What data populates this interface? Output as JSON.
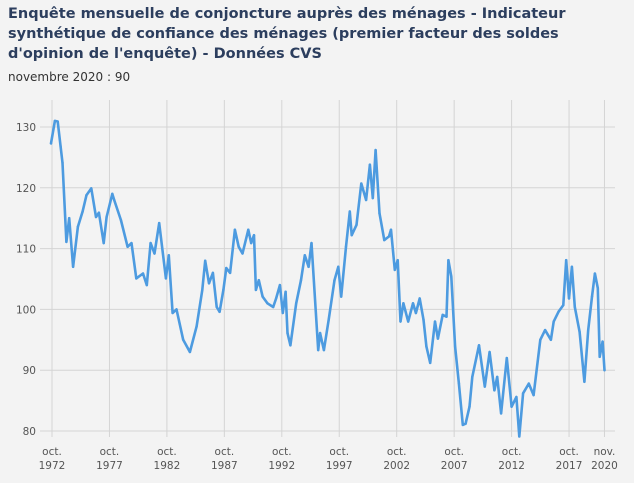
{
  "title": "Enquête mensuelle de conjoncture auprès des ménages - Indicateur synthétique de confiance des ménages (premier facteur des soldes d'opinion de l'enquête) - Données CVS",
  "subtitle": "novembre 2020 : 90",
  "chart_data": {
    "type": "line",
    "title": "Enquête mensuelle de conjoncture auprès des ménages - Indicateur synthétique de confiance des ménages (premier facteur des soldes d'opinion de l'enquête) - Données CVS",
    "xlabel": "",
    "ylabel": "",
    "ylim": [
      80,
      130
    ],
    "grid": true,
    "line_color": "#4d9be0",
    "y_ticks": [
      80,
      90,
      100,
      110,
      120,
      130
    ],
    "x_ticks": [
      {
        "date": "1972-10",
        "label": [
          "oct.",
          "1972"
        ]
      },
      {
        "date": "1977-10",
        "label": [
          "oct.",
          "1977"
        ]
      },
      {
        "date": "1982-10",
        "label": [
          "oct.",
          "1982"
        ]
      },
      {
        "date": "1987-10",
        "label": [
          "oct.",
          "1987"
        ]
      },
      {
        "date": "1992-10",
        "label": [
          "oct.",
          "1992"
        ]
      },
      {
        "date": "1997-10",
        "label": [
          "oct.",
          "1997"
        ]
      },
      {
        "date": "2002-10",
        "label": [
          "oct.",
          "2002"
        ]
      },
      {
        "date": "2007-10",
        "label": [
          "oct.",
          "2007"
        ]
      },
      {
        "date": "2012-10",
        "label": [
          "oct.",
          "2012"
        ]
      },
      {
        "date": "2017-10",
        "label": [
          "oct.",
          "2017"
        ]
      },
      {
        "date": "2020-11",
        "label": [
          "nov.",
          "2020"
        ]
      }
    ],
    "x": [
      "1972-09",
      "1973-01",
      "1973-04",
      "1973-07",
      "1973-09",
      "1974-01",
      "1974-04",
      "1974-08",
      "1975-01",
      "1975-06",
      "1975-10",
      "1976-03",
      "1976-08",
      "1976-11",
      "1977-04",
      "1977-07",
      "1978-01",
      "1978-03",
      "1978-10",
      "1979-05",
      "1979-09",
      "1980-02",
      "1980-09",
      "1981-01",
      "1981-05",
      "1981-09",
      "1982-02",
      "1982-09",
      "1982-12",
      "1983-04",
      "1983-08",
      "1984-03",
      "1984-10",
      "1985-05",
      "1985-11",
      "1986-02",
      "1986-06",
      "1986-10",
      "1987-02",
      "1987-05",
      "1987-09",
      "1987-12",
      "1988-04",
      "1988-09",
      "1989-01",
      "1989-05",
      "1989-11",
      "1990-02",
      "1990-05",
      "1990-07",
      "1990-10",
      "1991-02",
      "1991-07",
      "1992-01",
      "1992-04",
      "1992-08",
      "1992-11",
      "1993-02",
      "1993-04",
      "1993-07",
      "1994-01",
      "1994-06",
      "1994-10",
      "1995-02",
      "1995-05",
      "1995-12",
      "1996-02",
      "1996-06",
      "1996-11",
      "1997-05",
      "1997-09",
      "1997-12",
      "1998-05",
      "1998-09",
      "1998-11",
      "1999-04",
      "1999-09",
      "2000-02",
      "2000-06",
      "2000-09",
      "2000-12",
      "2001-04",
      "2001-09",
      "2002-02",
      "2002-04",
      "2002-08",
      "2002-11",
      "2003-02",
      "2003-05",
      "2003-10",
      "2004-03",
      "2004-06",
      "2004-10",
      "2005-02",
      "2005-05",
      "2005-09",
      "2006-02",
      "2006-05",
      "2006-10",
      "2007-02",
      "2007-04",
      "2007-07",
      "2007-11",
      "2008-03",
      "2008-07",
      "2008-10",
      "2009-02",
      "2009-05",
      "2009-12",
      "2010-06",
      "2010-11",
      "2011-04",
      "2011-07",
      "2011-11",
      "2012-05",
      "2012-10",
      "2013-03",
      "2013-06",
      "2013-10",
      "2014-04",
      "2014-09",
      "2015-04",
      "2015-09",
      "2016-03",
      "2016-06",
      "2016-11",
      "2017-04",
      "2017-07",
      "2017-10",
      "2018-01",
      "2018-04",
      "2018-09",
      "2019-02",
      "2019-06",
      "2019-10",
      "2020-01",
      "2020-04",
      "2020-06",
      "2020-09",
      "2020-11"
    ],
    "values": [
      127.3,
      131,
      130.9,
      126.8,
      124.1,
      111.1,
      115,
      107,
      113.6,
      116.1,
      118.8,
      119.9,
      115.2,
      115.9,
      110.9,
      115.2,
      119,
      118,
      114.7,
      110.3,
      110.9,
      105.1,
      105.9,
      104,
      110.9,
      109.2,
      114.2,
      105.1,
      108.9,
      99.4,
      100,
      95,
      93,
      97.2,
      103.2,
      108,
      104.3,
      106,
      100.4,
      99.6,
      103.2,
      106.8,
      106,
      113.1,
      110.3,
      109.2,
      113.1,
      110.9,
      112.2,
      103.2,
      104.8,
      102.1,
      101,
      100.4,
      101.8,
      104,
      99.4,
      102.9,
      96.1,
      94.1,
      101,
      104.8,
      108.9,
      107,
      110.9,
      93.3,
      96.1,
      93.3,
      98.3,
      104.8,
      107,
      102.1,
      110.3,
      116.1,
      112.2,
      113.9,
      120.7,
      118,
      123.8,
      118.3,
      126.2,
      115.8,
      111.4,
      112,
      113.1,
      106.5,
      108.1,
      98,
      101,
      98,
      101,
      99.4,
      101.8,
      98.3,
      93.9,
      91.2,
      98,
      95.2,
      99.1,
      98.8,
      108.1,
      105.4,
      93.9,
      87.8,
      81,
      81.2,
      84,
      88.9,
      94.1,
      87.3,
      93,
      86.7,
      88.9,
      82.9,
      92,
      84,
      85.6,
      79.1,
      86.2,
      87.8,
      85.9,
      95,
      96.6,
      95,
      98,
      99.6,
      100.7,
      108.1,
      101.8,
      107,
      100.4,
      96.3,
      88.1,
      96.6,
      102.1,
      105.9,
      103.5,
      92.2,
      94.7,
      90
    ]
  }
}
